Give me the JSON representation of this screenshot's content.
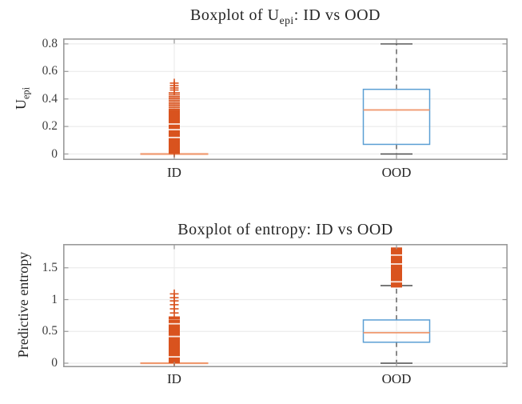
{
  "colors": {
    "box_edge": "#5B9FD4",
    "median": "#F09A70",
    "outlier": "#D9531E",
    "whisker": "#4D4D4D",
    "axis_border": "#9A9A9A",
    "grid": "#ECECEC",
    "text": "#262626"
  },
  "chart_data": [
    {
      "type": "boxplot",
      "title": "Boxplot of U_epi: ID vs OOD",
      "title_parts": {
        "pre": "Boxplot of U",
        "sub": "epi",
        "post": ": ID vs OOD"
      },
      "ylabel": "U_epi",
      "ylabel_parts": {
        "pre": "U",
        "sub": "epi"
      },
      "categories": [
        "ID",
        "OOD"
      ],
      "yticks": [
        0,
        0.2,
        0.4,
        0.6,
        0.8
      ],
      "ylim": [
        -0.044,
        0.84
      ],
      "grid": true,
      "groups": [
        {
          "category": "ID",
          "collapsed": true,
          "q1": 0,
          "median": 0,
          "q3": 0,
          "whisker_low": 0,
          "whisker_high": 0,
          "outlier_bands": [
            [
              0,
              0.32
            ]
          ],
          "band_gaps": [
            0.12,
            0.177,
            0.218
          ],
          "outlier_ticks": [
            0.325,
            0.338,
            0.351,
            0.364,
            0.377,
            0.39,
            0.403,
            0.416,
            0.43,
            0.444
          ],
          "outlier_points": [
            0.465,
            0.48,
            0.497,
            0.515
          ]
        },
        {
          "category": "OOD",
          "collapsed": false,
          "q1": 0.07,
          "median": 0.32,
          "q3": 0.47,
          "whisker_low": 0,
          "whisker_high": 0.8,
          "outlier_bands": [],
          "band_gaps": [],
          "outlier_ticks": [],
          "outlier_points": []
        }
      ]
    },
    {
      "type": "boxplot",
      "title": "Boxplot of entropy: ID vs OOD",
      "title_parts": {
        "pre": "Boxplot of entropy: ID vs OOD",
        "sub": "",
        "post": ""
      },
      "ylabel": "Predictive entropy",
      "ylabel_parts": {
        "pre": "Predictive entropy",
        "sub": ""
      },
      "categories": [
        "ID",
        "OOD"
      ],
      "yticks": [
        0,
        0.5,
        1,
        1.5
      ],
      "ylim": [
        -0.063,
        1.874
      ],
      "grid": true,
      "groups": [
        {
          "category": "ID",
          "collapsed": true,
          "q1": 0,
          "median": 0,
          "q3": 0,
          "whisker_low": 0,
          "whisker_high": 0,
          "outlier_bands": [
            [
              0,
              0.68
            ]
          ],
          "band_gaps": [
            0.1,
            0.42,
            0.62
          ],
          "outlier_ticks": [
            0.695,
            0.71,
            0.725
          ],
          "outlier_points": [
            0.79,
            0.855,
            0.92,
            0.98,
            1.03,
            1.09
          ]
        },
        {
          "category": "OOD",
          "collapsed": false,
          "q1": 0.33,
          "median": 0.48,
          "q3": 0.68,
          "whisker_low": 0,
          "whisker_high": 1.22,
          "outlier_bands": [
            [
              1.19,
              1.82
            ]
          ],
          "band_gaps": [
            1.28,
            1.56,
            1.7
          ],
          "outlier_ticks": [],
          "outlier_points": []
        }
      ]
    }
  ]
}
